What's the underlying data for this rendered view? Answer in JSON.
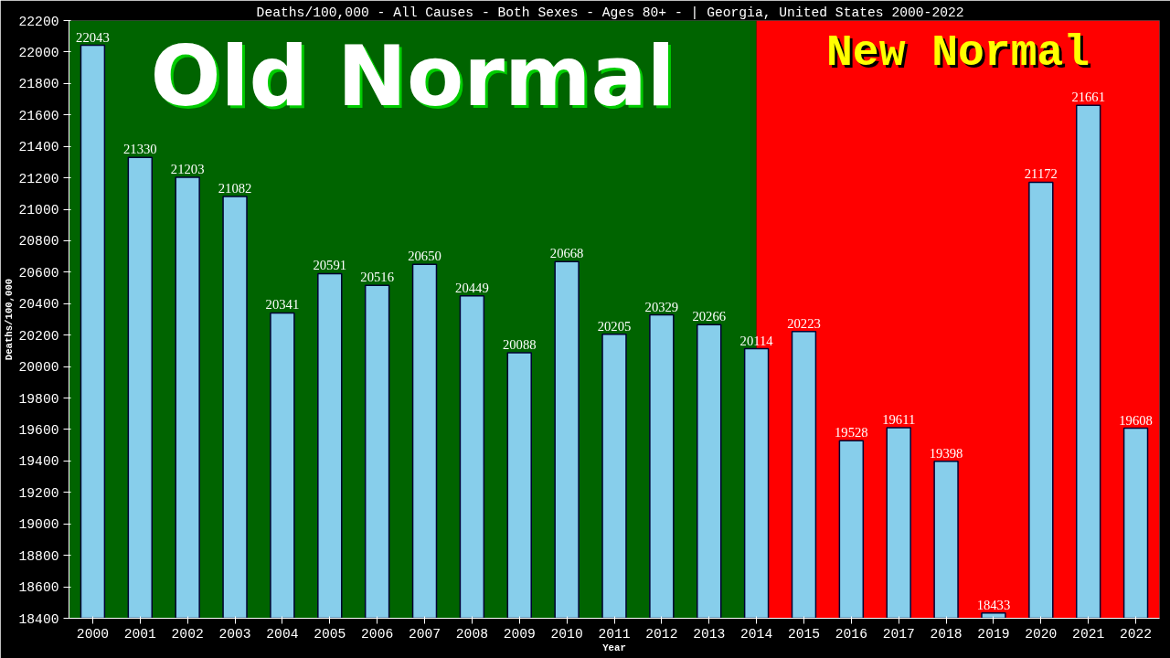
{
  "chart_data": {
    "type": "bar",
    "title": "Deaths/100,000 - All Causes - Both Sexes - Ages 80+ -  | Georgia, United States 2000-2022",
    "xlabel": "Year",
    "ylabel": "Deaths/100,000",
    "categories": [
      "2000",
      "2001",
      "2002",
      "2003",
      "2004",
      "2005",
      "2006",
      "2007",
      "2008",
      "2009",
      "2010",
      "2011",
      "2012",
      "2013",
      "2014",
      "2015",
      "2016",
      "2017",
      "2018",
      "2019",
      "2020",
      "2021",
      "2022"
    ],
    "values": [
      22043,
      21330,
      21203,
      21082,
      20341,
      20591,
      20516,
      20650,
      20449,
      20088,
      20668,
      20205,
      20329,
      20266,
      20114,
      20223,
      19528,
      19611,
      19398,
      18433,
      21172,
      21661,
      19608
    ],
    "color": "#87ceeb",
    "data_labels": true,
    "grid": false,
    "ylim": [
      18400,
      22200
    ],
    "yticks": [
      18400,
      18600,
      18800,
      19000,
      19200,
      19400,
      19600,
      19800,
      20000,
      20200,
      20400,
      20600,
      20800,
      21000,
      21200,
      21400,
      21600,
      21800,
      22000,
      22200
    ],
    "bands": [
      {
        "axis": "x",
        "from": "2000",
        "to": "2014",
        "label": "Old Normal",
        "color": "#006400"
      },
      {
        "axis": "x",
        "from": "2014",
        "to": "2022",
        "label": "New Normal",
        "color": "#ff0000"
      }
    ]
  }
}
